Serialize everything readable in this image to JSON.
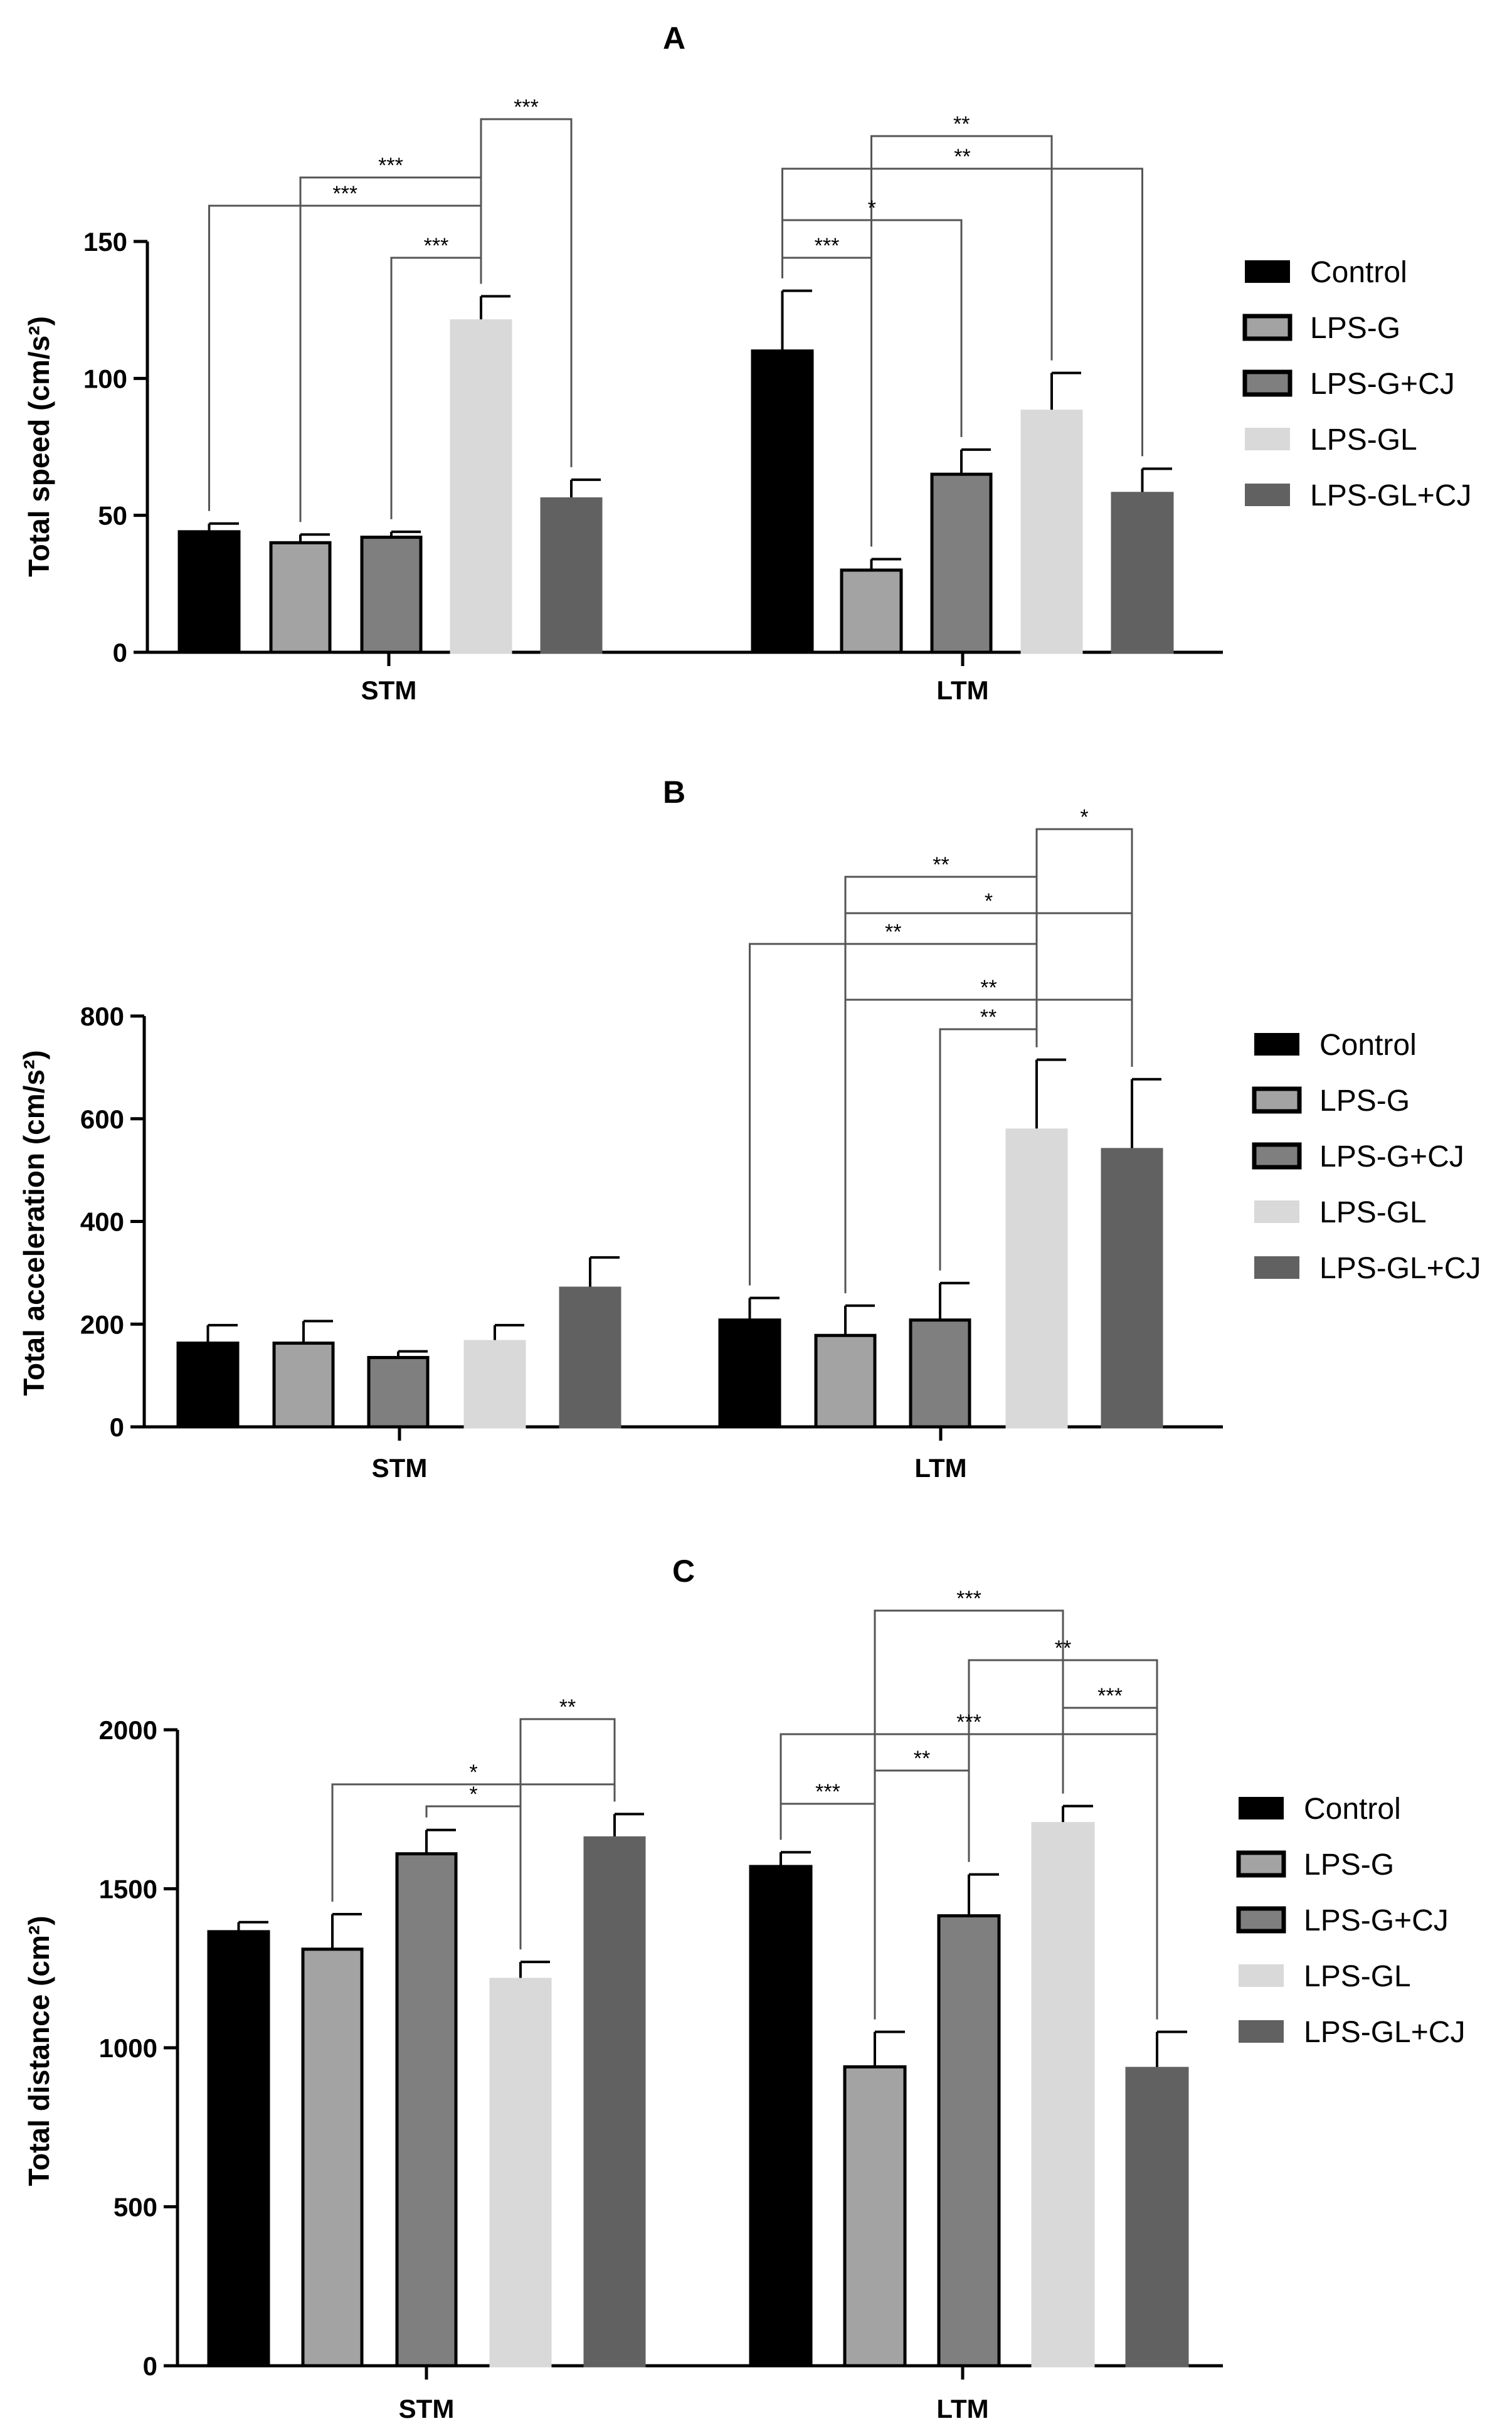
{
  "colors": {
    "Control": "#000000",
    "LPS-G": "#a3a3a3",
    "LPS-G+CJ": "#7f7f7f",
    "LPS-GL": "#d9d9d9",
    "LPS-GL+CJ": "#616161"
  },
  "chart_data": [
    {
      "panel": "A",
      "type": "bar",
      "title": "A",
      "ylabel": "Total speed (cm/s²)",
      "xlabel": "",
      "categories": [
        "STM",
        "LTM"
      ],
      "ylim": [
        0,
        150
      ],
      "yticks": [
        0,
        50,
        100,
        150
      ],
      "legend": "right",
      "series": [
        {
          "name": "Control",
          "values": [
            44,
            110
          ],
          "errors": [
            3,
            22
          ]
        },
        {
          "name": "LPS-G",
          "values": [
            40,
            30
          ],
          "errors": [
            3,
            4
          ]
        },
        {
          "name": "LPS-G+CJ",
          "values": [
            42,
            65
          ],
          "errors": [
            2,
            9
          ]
        },
        {
          "name": "LPS-GL",
          "values": [
            121,
            88
          ],
          "errors": [
            9,
            14
          ]
        },
        {
          "name": "LPS-GL+CJ",
          "values": [
            56,
            58
          ],
          "errors": [
            7,
            9
          ]
        }
      ],
      "significance": [
        {
          "group": "STM",
          "from": "LPS-GL",
          "to": "LPS-GL+CJ",
          "label": "***"
        },
        {
          "group": "STM",
          "from": "LPS-G",
          "to": "LPS-GL",
          "label": "***"
        },
        {
          "group": "STM",
          "from": "Control",
          "to": "LPS-GL",
          "label": "***"
        },
        {
          "group": "STM",
          "from": "LPS-G+CJ",
          "to": "LPS-GL",
          "label": "***"
        },
        {
          "group": "LTM",
          "from": "LPS-G",
          "to": "LPS-GL",
          "label": "**"
        },
        {
          "group": "LTM",
          "from": "Control",
          "to": "LPS-GL+CJ",
          "label": "**"
        },
        {
          "group": "LTM",
          "from": "Control",
          "to": "LPS-G+CJ",
          "label": "*"
        },
        {
          "group": "LTM",
          "from": "Control",
          "to": "LPS-G",
          "label": "***"
        }
      ]
    },
    {
      "panel": "B",
      "type": "bar",
      "title": "B",
      "ylabel": "Total acceleration (cm/s²)",
      "xlabel": "",
      "categories": [
        "STM",
        "LTM"
      ],
      "ylim": [
        0,
        800
      ],
      "yticks": [
        0,
        200,
        400,
        600,
        800
      ],
      "legend": "right",
      "series": [
        {
          "name": "Control",
          "values": [
            163,
            208
          ],
          "errors": [
            35,
            43
          ]
        },
        {
          "name": "LPS-G",
          "values": [
            163,
            178
          ],
          "errors": [
            43,
            58
          ]
        },
        {
          "name": "LPS-G+CJ",
          "values": [
            135,
            208
          ],
          "errors": [
            12,
            72
          ]
        },
        {
          "name": "LPS-GL",
          "values": [
            166,
            578
          ],
          "errors": [
            32,
            137
          ]
        },
        {
          "name": "LPS-GL+CJ",
          "values": [
            270,
            540
          ],
          "errors": [
            60,
            137
          ]
        }
      ],
      "significance": [
        {
          "group": "LTM",
          "from": "LPS-GL",
          "to": "LPS-GL+CJ",
          "label": "*"
        },
        {
          "group": "LTM",
          "from": "LPS-G",
          "to": "LPS-GL",
          "label": "**"
        },
        {
          "group": "LTM",
          "from": "LPS-G",
          "to": "LPS-GL+CJ",
          "label": "*"
        },
        {
          "group": "LTM",
          "from": "Control",
          "to": "LPS-GL",
          "label": "**"
        },
        {
          "group": "LTM",
          "from": "LPS-G",
          "to": "LPS-GL+CJ",
          "label": "**"
        },
        {
          "group": "LTM",
          "from": "LPS-G+CJ",
          "to": "LPS-GL",
          "label": "**"
        }
      ]
    },
    {
      "panel": "C",
      "type": "bar",
      "title": "C",
      "ylabel": "Total distance (cm²)",
      "xlabel": "",
      "categories": [
        "STM",
        "LTM"
      ],
      "ylim": [
        0,
        2000
      ],
      "yticks": [
        0,
        500,
        1000,
        1500,
        2000
      ],
      "legend": "right",
      "series": [
        {
          "name": "Control",
          "values": [
            1365,
            1570
          ],
          "errors": [
            30,
            45
          ]
        },
        {
          "name": "LPS-G",
          "values": [
            1310,
            940
          ],
          "errors": [
            110,
            110
          ]
        },
        {
          "name": "LPS-G+CJ",
          "values": [
            1610,
            1415
          ],
          "errors": [
            75,
            130
          ]
        },
        {
          "name": "LPS-GL",
          "values": [
            1215,
            1705
          ],
          "errors": [
            55,
            55
          ]
        },
        {
          "name": "LPS-GL+CJ",
          "values": [
            1660,
            935
          ],
          "errors": [
            75,
            115
          ]
        }
      ],
      "significance": [
        {
          "group": "STM",
          "from": "LPS-GL",
          "to": "LPS-GL+CJ",
          "label": "**"
        },
        {
          "group": "STM",
          "from": "LPS-G",
          "to": "LPS-GL+CJ",
          "label": "*"
        },
        {
          "group": "STM",
          "from": "LPS-G+CJ",
          "to": "LPS-GL",
          "label": "*"
        },
        {
          "group": "LTM",
          "from": "LPS-G",
          "to": "LPS-GL",
          "label": "***"
        },
        {
          "group": "LTM",
          "from": "LPS-G+CJ",
          "to": "LPS-GL+CJ",
          "label": "**"
        },
        {
          "group": "LTM",
          "from": "LPS-GL",
          "to": "LPS-GL+CJ",
          "label": "***"
        },
        {
          "group": "LTM",
          "from": "Control",
          "to": "LPS-GL+CJ",
          "label": "***"
        },
        {
          "group": "LTM",
          "from": "LPS-G",
          "to": "LPS-G+CJ",
          "label": "**"
        },
        {
          "group": "LTM",
          "from": "Control",
          "to": "LPS-G",
          "label": "***"
        }
      ]
    }
  ]
}
